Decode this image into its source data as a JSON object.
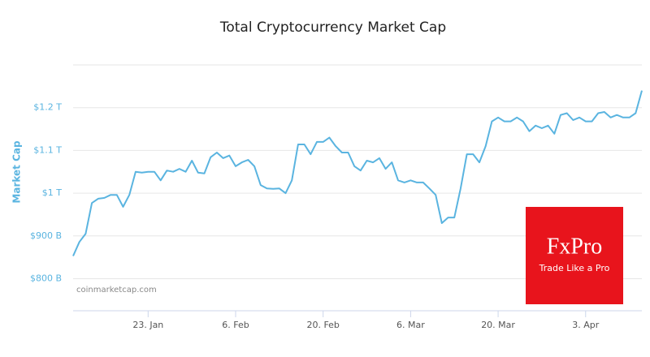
{
  "chart_data": {
    "type": "line",
    "title": "Total Cryptocurrency Market Cap",
    "y_label": "Market Cap",
    "source": "coinmarketcap.com",
    "logo_text": "FxPro",
    "logo_tagline": "Trade Like a Pro",
    "x": [
      11,
      12,
      13,
      14,
      15,
      16,
      17,
      18,
      19,
      20,
      21,
      22,
      23,
      24,
      25,
      26,
      27,
      28,
      29,
      30,
      31,
      32,
      33,
      34,
      35,
      36,
      37,
      38,
      39,
      40,
      41,
      42,
      43,
      44,
      45,
      46,
      47,
      48,
      49,
      50,
      51,
      52,
      53,
      54,
      55,
      56,
      57,
      58,
      59,
      60,
      61,
      62,
      63,
      64,
      65,
      66,
      67,
      68,
      69,
      70,
      71,
      72,
      73,
      74,
      75,
      76,
      77,
      78,
      79,
      80,
      81,
      82,
      83,
      84,
      85,
      86,
      87,
      88,
      89,
      90,
      91,
      92,
      93,
      94,
      95,
      96,
      97,
      98,
      99,
      100,
      101,
      102
    ],
    "series": [
      {
        "name": "Market Cap",
        "color": "#5ab4e0",
        "values": [
          853,
          886,
          905,
          977,
          987,
          989,
          996,
          996,
          968,
          996,
          1050,
          1048,
          1050,
          1050,
          1030,
          1053,
          1050,
          1057,
          1050,
          1076,
          1048,
          1046,
          1084,
          1095,
          1082,
          1088,
          1063,
          1072,
          1078,
          1063,
          1019,
          1011,
          1010,
          1011,
          1000,
          1030,
          1114,
          1114,
          1091,
          1120,
          1120,
          1130,
          1110,
          1095,
          1095,
          1063,
          1053,
          1076,
          1072,
          1082,
          1057,
          1072,
          1030,
          1025,
          1030,
          1025,
          1025,
          1011,
          996,
          930,
          943,
          943,
          1011,
          1091,
          1091,
          1072,
          1110,
          1168,
          1177,
          1168,
          1168,
          1177,
          1168,
          1145,
          1158,
          1152,
          1158,
          1139,
          1183,
          1187,
          1171,
          1177,
          1168,
          1168,
          1187,
          1190,
          1177,
          1183,
          1177,
          1177,
          1187,
          1240
        ]
      }
    ],
    "xlim": [
      11,
      102
    ],
    "xticks": [
      {
        "value": 23,
        "label": "23. Jan"
      },
      {
        "value": 37,
        "label": "6. Feb"
      },
      {
        "value": 51,
        "label": "20. Feb"
      },
      {
        "value": 65,
        "label": "6. Mar"
      },
      {
        "value": 79,
        "label": "20. Mar"
      },
      {
        "value": 93,
        "label": "3. Apr"
      }
    ],
    "ylim": [
      725,
      1300
    ],
    "yticks": [
      {
        "value": 800,
        "label": "$800 B"
      },
      {
        "value": 900,
        "label": "$900 B"
      },
      {
        "value": 1000,
        "label": "$1 T"
      },
      {
        "value": 1100,
        "label": "$1.1 T"
      },
      {
        "value": 1200,
        "label": "$1.2 T"
      }
    ],
    "grid": true
  }
}
